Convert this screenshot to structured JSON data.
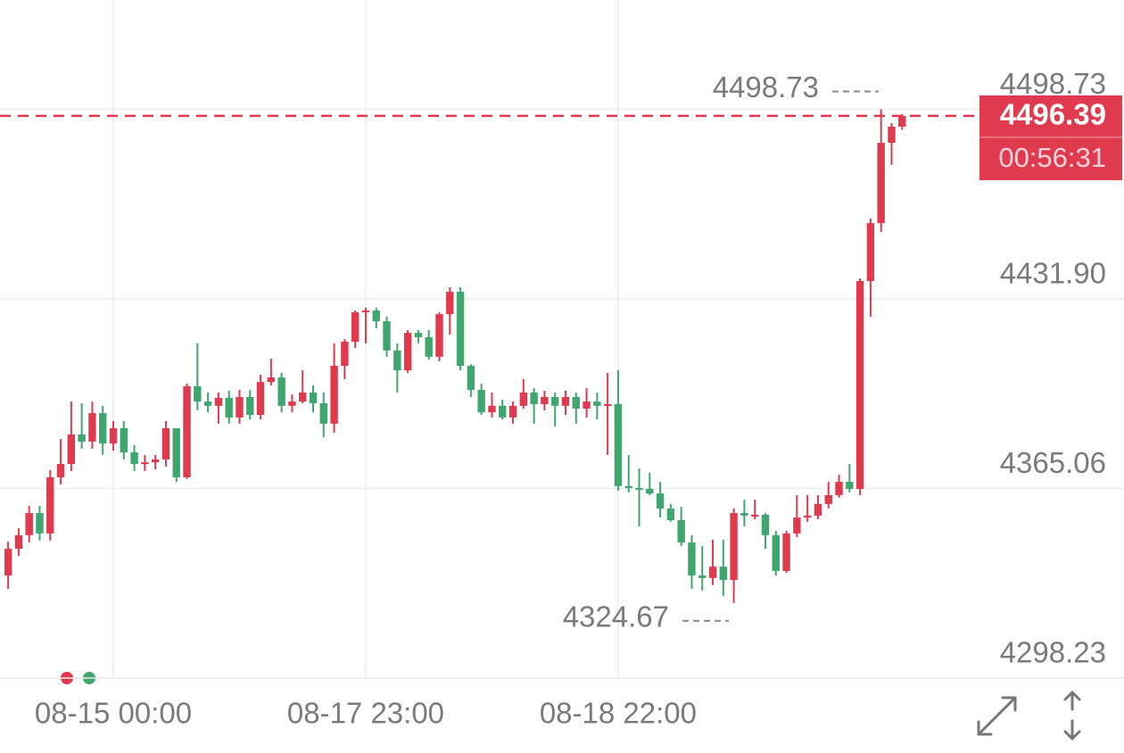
{
  "chart_data": {
    "type": "candlestick",
    "categories": [
      null,
      null,
      null,
      null,
      null,
      null,
      null,
      null,
      null,
      null,
      "08-15 00:00",
      null,
      null,
      null,
      null,
      null,
      null,
      null,
      null,
      null,
      null,
      null,
      null,
      null,
      null,
      null,
      null,
      null,
      null,
      null,
      null,
      null,
      null,
      null,
      "08-17 23:00",
      null,
      null,
      null,
      null,
      null,
      null,
      null,
      null,
      null,
      null,
      null,
      null,
      null,
      null,
      null,
      null,
      null,
      null,
      null,
      null,
      null,
      null,
      null,
      "08-18 22:00",
      null,
      null,
      null,
      null,
      null,
      null,
      null,
      null,
      null,
      null,
      null,
      null,
      null,
      null,
      null,
      null,
      null,
      null,
      null,
      null,
      null,
      null,
      null,
      null,
      null,
      null,
      null
    ],
    "open": [
      4334.4,
      4343.8,
      4348.6,
      4356.4,
      4349.2,
      4369.0,
      4373.7,
      4384.1,
      4381.6,
      4391.6,
      4380.9,
      4386.3,
      4377.8,
      4373.7,
      4374.3,
      4375.3,
      4386.3,
      4369.0,
      4401.1,
      4395.7,
      4394.2,
      4397.0,
      4390.1,
      4397.3,
      4391.0,
      4402.6,
      4404.2,
      4394.2,
      4395.7,
      4398.9,
      4395.1,
      4387.9,
      4408.3,
      4416.8,
      4427.2,
      4427.8,
      4424.0,
      4413.7,
      4406.7,
      4419.9,
      4418.4,
      4411.5,
      4426.5,
      4434.4,
      4408.3,
      4399.8,
      4391.9,
      4394.2,
      4390.1,
      4394.2,
      4398.9,
      4394.8,
      4397.3,
      4394.2,
      4397.3,
      4393.2,
      4395.7,
      4394.2,
      4394.8,
      4365.9,
      4365.2,
      4364.9,
      4363.3,
      4358.0,
      4353.9,
      4346.0,
      4334.4,
      4333.5,
      4337.5,
      4332.8,
      4356.4,
      4355.5,
      4355.8,
      4348.6,
      4336.0,
      4349.2,
      4354.8,
      4355.5,
      4359.6,
      4362.7,
      4367.4,
      4364.9,
      4438.2,
      4458.6,
      4486.9,
      4492.6
    ],
    "high": [
      4346.3,
      4351.1,
      4358.9,
      4358.9,
      4371.5,
      4382.5,
      4395.7,
      4395.1,
      4395.7,
      4394.2,
      4388.8,
      4388.8,
      4380.3,
      4376.9,
      4376.9,
      4388.8,
      4386.3,
      4402.0,
      4416.2,
      4398.9,
      4398.9,
      4399.5,
      4399.8,
      4399.8,
      4405.2,
      4410.8,
      4405.8,
      4398.2,
      4406.7,
      4401.4,
      4398.9,
      4416.2,
      4417.7,
      4427.8,
      4428.8,
      4428.8,
      4425.6,
      4416.2,
      4420.9,
      4420.9,
      4420.9,
      4427.2,
      4436.0,
      4436.0,
      4408.9,
      4402.0,
      4398.9,
      4396.4,
      4395.7,
      4403.6,
      4400.4,
      4399.5,
      4398.9,
      4399.5,
      4398.9,
      4400.4,
      4398.9,
      4405.8,
      4406.7,
      4376.9,
      4372.1,
      4370.6,
      4367.4,
      4359.6,
      4358.6,
      4348.6,
      4344.8,
      4347.0,
      4347.0,
      4358.0,
      4361.1,
      4361.1,
      4356.4,
      4350.1,
      4350.1,
      4362.7,
      4362.7,
      4362.7,
      4367.4,
      4369.9,
      4373.7,
      4439.1,
      4460.2,
      4498.73,
      4493.9,
      4497.0
    ],
    "low": [
      4329.7,
      4341.3,
      4346.0,
      4346.7,
      4346.7,
      4366.5,
      4371.2,
      4379.1,
      4379.1,
      4376.9,
      4378.4,
      4375.3,
      4371.2,
      4371.2,
      4371.8,
      4372.8,
      4367.4,
      4368.4,
      4392.6,
      4391.9,
      4387.9,
      4387.9,
      4387.9,
      4389.4,
      4389.4,
      4401.4,
      4391.9,
      4391.9,
      4395.1,
      4391.9,
      4383.1,
      4384.7,
      4403.6,
      4414.6,
      4416.2,
      4421.5,
      4411.5,
      4398.9,
      4405.8,
      4416.2,
      4410.5,
      4409.9,
      4419.3,
      4406.7,
      4397.3,
      4391.0,
      4390.1,
      4389.4,
      4387.9,
      4393.2,
      4387.9,
      4392.6,
      4386.9,
      4391.0,
      4387.9,
      4390.1,
      4389.4,
      4376.9,
      4364.3,
      4363.7,
      4351.7,
      4362.7,
      4354.8,
      4353.3,
      4344.8,
      4329.7,
      4329.1,
      4331.0,
      4327.2,
      4324.67,
      4351.7,
      4354.2,
      4343.8,
      4334.4,
      4335.3,
      4347.9,
      4353.3,
      4354.2,
      4358.0,
      4361.8,
      4363.7,
      4362.7,
      4425.6,
      4455.5,
      4479.1,
      4491.5
    ],
    "close": [
      4343.8,
      4348.6,
      4356.4,
      4349.2,
      4369.0,
      4373.7,
      4384.1,
      4381.6,
      4391.6,
      4380.9,
      4386.3,
      4377.8,
      4373.7,
      4374.3,
      4375.3,
      4386.3,
      4369.0,
      4401.1,
      4395.7,
      4394.2,
      4397.0,
      4390.1,
      4397.3,
      4391.0,
      4402.6,
      4404.2,
      4394.2,
      4395.7,
      4398.9,
      4395.1,
      4387.9,
      4408.3,
      4416.8,
      4427.2,
      4427.8,
      4424.0,
      4413.7,
      4406.7,
      4419.9,
      4418.4,
      4411.5,
      4426.5,
      4434.4,
      4408.3,
      4399.8,
      4391.9,
      4394.2,
      4390.1,
      4394.2,
      4398.9,
      4394.8,
      4397.3,
      4394.2,
      4397.3,
      4393.2,
      4395.7,
      4394.2,
      4394.8,
      4365.9,
      4365.2,
      4364.9,
      4363.3,
      4358.0,
      4353.9,
      4346.0,
      4334.4,
      4333.5,
      4337.5,
      4332.8,
      4356.4,
      4355.5,
      4355.8,
      4348.6,
      4336.0,
      4349.2,
      4354.8,
      4355.5,
      4359.6,
      4362.7,
      4367.4,
      4364.9,
      4438.2,
      4458.6,
      4486.9,
      4492.6,
      4496.39
    ],
    "up_color": "#e03a4f",
    "down_color": "#3fa66f",
    "ylim": [
      4298.23,
      4537.25
    ],
    "yticks": [
      4298.23,
      4365.06,
      {
        "value": 4431.9,
        "label": "4431.90"
      },
      4498.73
    ],
    "grid": true,
    "countdown": "00:56:31"
  }
}
